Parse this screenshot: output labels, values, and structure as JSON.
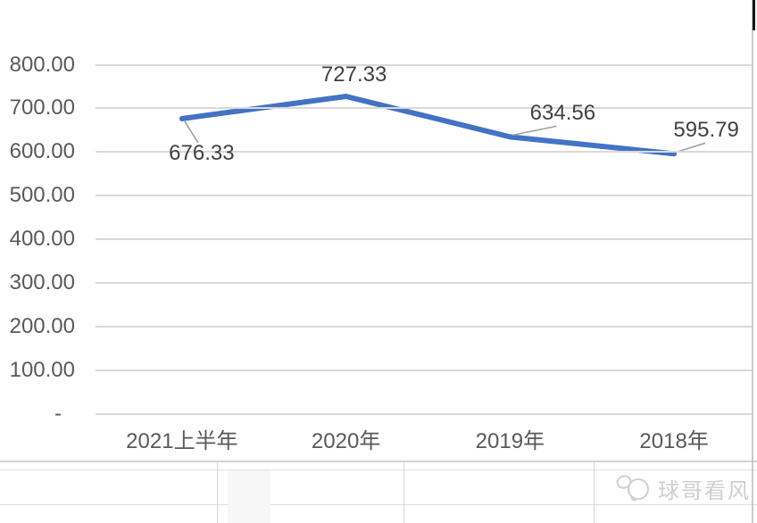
{
  "watermark": {
    "text": "球哥看风",
    "logo_icon": "panda-ball-logo"
  },
  "chart_data": {
    "type": "line",
    "title": "",
    "xlabel": "",
    "ylabel": "",
    "categories": [
      "2021上半年",
      "2020年",
      "2019年",
      "2018年"
    ],
    "values": [
      676.33,
      727.33,
      634.56,
      595.79
    ],
    "data_labels": [
      "676.33",
      "727.33",
      "634.56",
      "595.79"
    ],
    "series": [
      {
        "name": "",
        "values": [
          676.33,
          727.33,
          634.56,
          595.79
        ]
      }
    ],
    "ylim": [
      0,
      800
    ],
    "y_ticks": [
      {
        "value": 800,
        "label": "800.00"
      },
      {
        "value": 700,
        "label": "700.00"
      },
      {
        "value": 600,
        "label": "600.00"
      },
      {
        "value": 500,
        "label": "500.00"
      },
      {
        "value": 400,
        "label": "400.00"
      },
      {
        "value": 300,
        "label": "300.00"
      },
      {
        "value": 200,
        "label": "200.00"
      },
      {
        "value": 100,
        "label": "100.00"
      },
      {
        "value": 0,
        "label": "-"
      }
    ],
    "grid": "horizontal",
    "legend": "none",
    "colors": {
      "line": "#4472c4",
      "gridline": "#d9d9d9",
      "axis_text": "#595959",
      "data_label_text": "#404040",
      "leader_line": "#a0a0a0"
    }
  }
}
